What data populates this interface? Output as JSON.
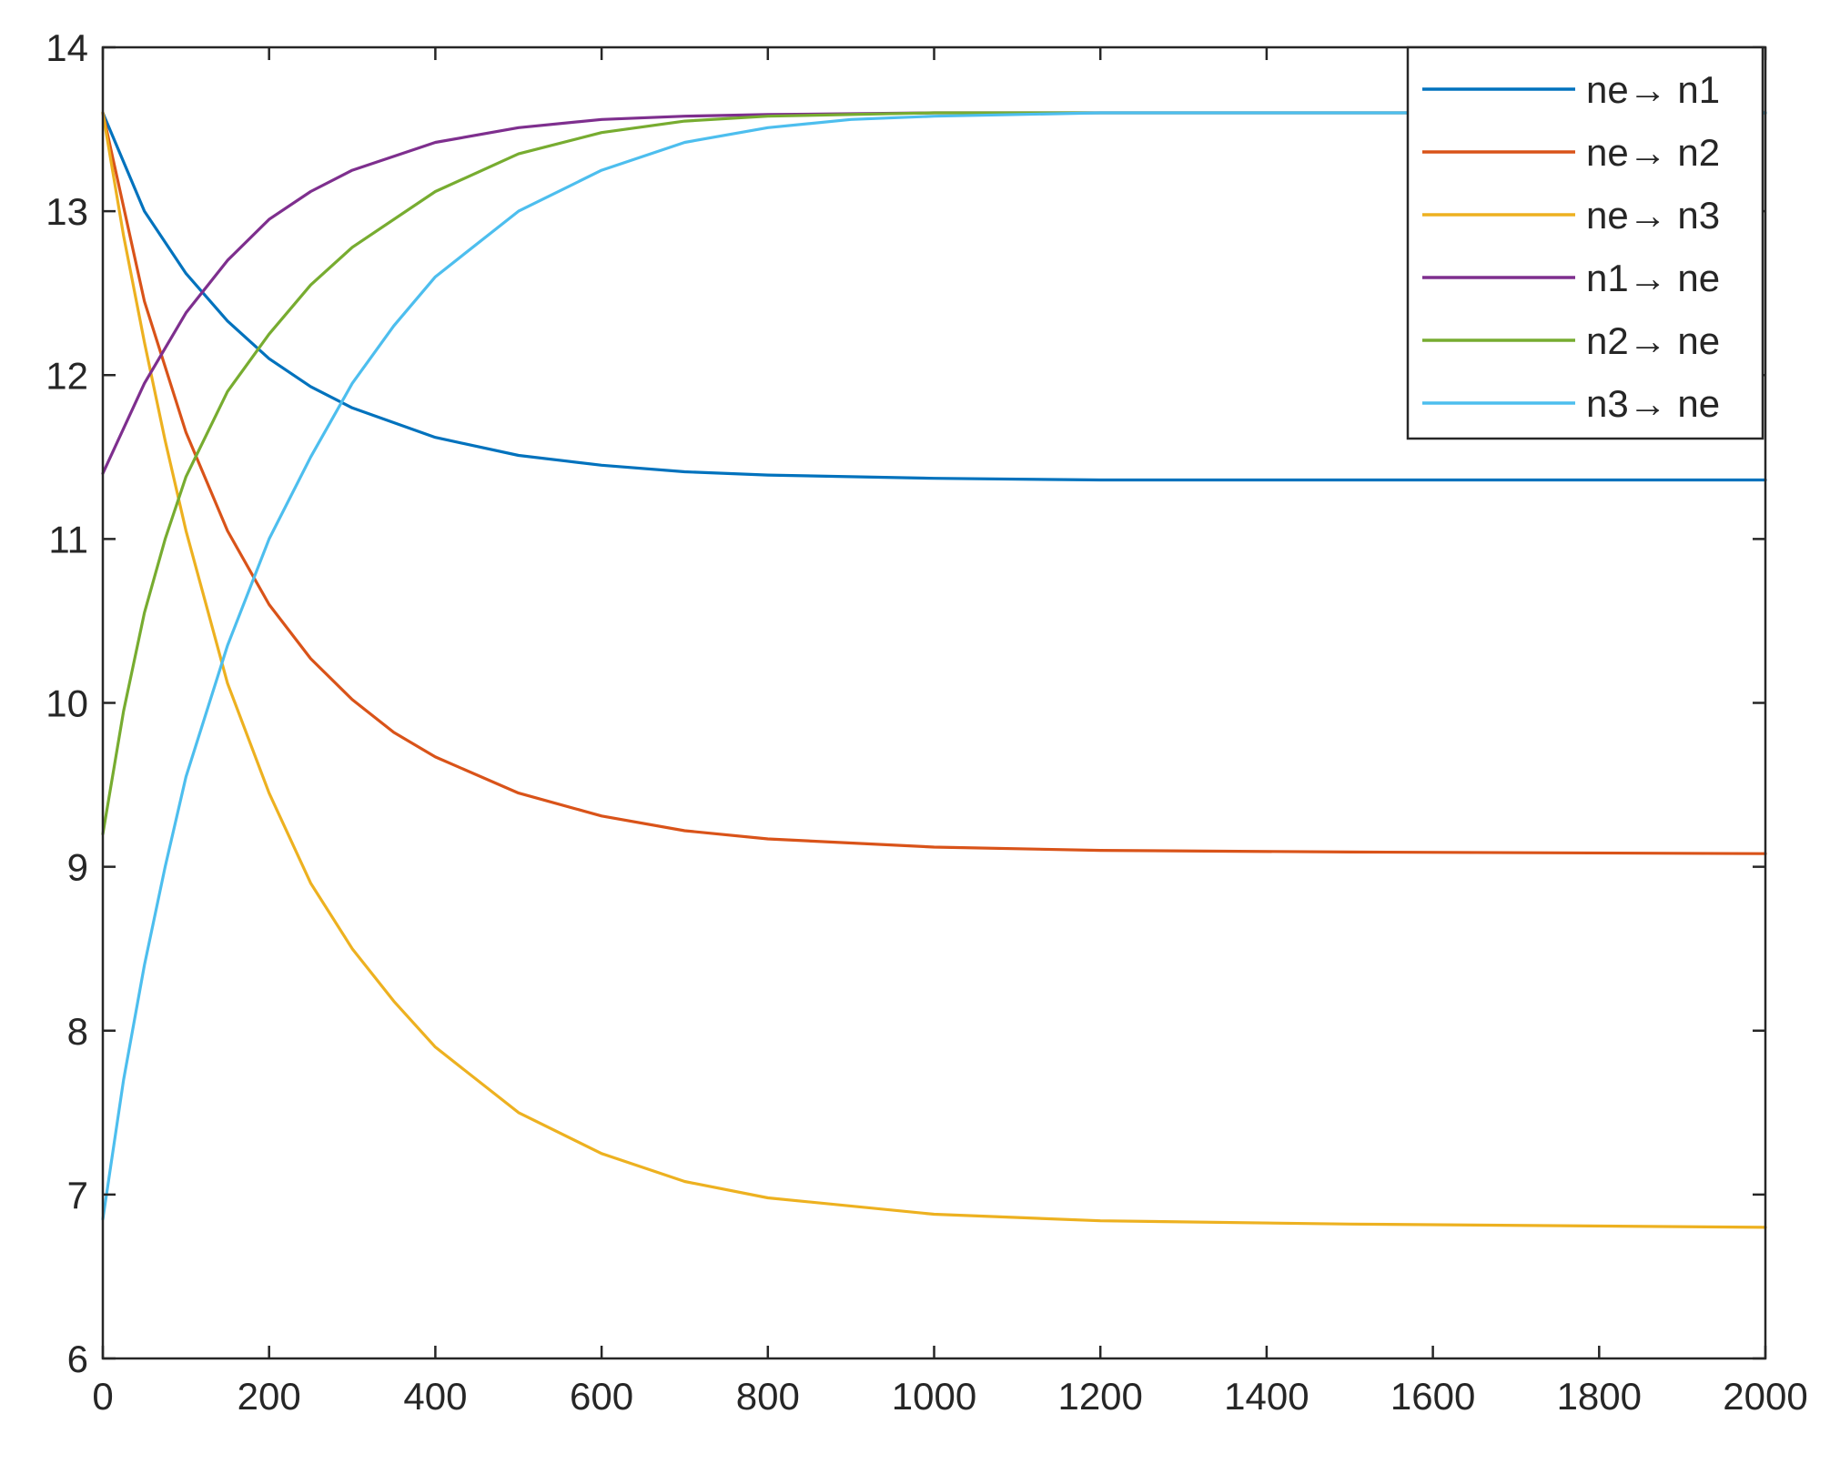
{
  "chart_data": {
    "type": "line",
    "title": "",
    "xlabel": "",
    "ylabel": "",
    "xlim": [
      0,
      2000
    ],
    "ylim": [
      6,
      14
    ],
    "xticks": [
      0,
      200,
      400,
      600,
      800,
      1000,
      1200,
      1400,
      1600,
      1800,
      2000
    ],
    "yticks": [
      6,
      7,
      8,
      9,
      10,
      11,
      12,
      13,
      14
    ],
    "xtick_labels": [
      "0",
      "200",
      "400",
      "600",
      "800",
      "1000",
      "1200",
      "1400",
      "1600",
      "1800",
      "2000"
    ],
    "ytick_labels": [
      "6",
      "7",
      "8",
      "9",
      "10",
      "11",
      "12",
      "13",
      "14"
    ],
    "grid": false,
    "legend_position": "top-right",
    "series": [
      {
        "name": "ne→ n1",
        "color": "#0072BD",
        "x": [
          0,
          50,
          100,
          150,
          200,
          250,
          300,
          400,
          500,
          600,
          700,
          800,
          1000,
          1200,
          1500,
          2000
        ],
        "y": [
          13.6,
          13.0,
          12.62,
          12.33,
          12.1,
          11.93,
          11.8,
          11.62,
          11.51,
          11.45,
          11.41,
          11.39,
          11.37,
          11.36,
          11.36,
          11.36
        ]
      },
      {
        "name": "ne→ n2",
        "color": "#D95319",
        "x": [
          0,
          50,
          100,
          150,
          200,
          250,
          300,
          350,
          400,
          500,
          600,
          700,
          800,
          1000,
          1200,
          1500,
          2000
        ],
        "y": [
          13.6,
          12.45,
          11.65,
          11.05,
          10.6,
          10.27,
          10.02,
          9.82,
          9.67,
          9.45,
          9.31,
          9.22,
          9.17,
          9.12,
          9.1,
          9.09,
          9.08
        ]
      },
      {
        "name": "ne→ n3",
        "color": "#EDB120",
        "x": [
          0,
          25,
          50,
          75,
          100,
          150,
          200,
          250,
          300,
          350,
          400,
          500,
          600,
          700,
          800,
          1000,
          1200,
          1500,
          2000
        ],
        "y": [
          13.6,
          12.85,
          12.2,
          11.6,
          11.05,
          10.12,
          9.45,
          8.9,
          8.5,
          8.18,
          7.9,
          7.5,
          7.25,
          7.08,
          6.98,
          6.88,
          6.84,
          6.82,
          6.8
        ]
      },
      {
        "name": "n1→ ne",
        "color": "#7E2F8E",
        "x": [
          0,
          50,
          100,
          150,
          200,
          250,
          300,
          400,
          500,
          600,
          700,
          800,
          1000,
          1200,
          2000
        ],
        "y": [
          11.4,
          11.95,
          12.38,
          12.7,
          12.95,
          13.12,
          13.25,
          13.42,
          13.51,
          13.56,
          13.58,
          13.59,
          13.6,
          13.6,
          13.6
        ]
      },
      {
        "name": "n2→ ne",
        "color": "#77AC30",
        "x": [
          0,
          25,
          50,
          75,
          100,
          150,
          200,
          250,
          300,
          400,
          500,
          600,
          700,
          800,
          1000,
          1200,
          2000
        ],
        "y": [
          9.2,
          9.95,
          10.55,
          11.0,
          11.38,
          11.9,
          12.25,
          12.55,
          12.78,
          13.12,
          13.35,
          13.48,
          13.55,
          13.58,
          13.6,
          13.6,
          13.6
        ]
      },
      {
        "name": "n3→ ne",
        "color": "#4DBEEE",
        "x": [
          0,
          25,
          50,
          75,
          100,
          150,
          200,
          250,
          300,
          350,
          400,
          500,
          600,
          700,
          800,
          900,
          1000,
          1200,
          1400,
          2000
        ],
        "y": [
          6.85,
          7.7,
          8.4,
          9.0,
          9.55,
          10.35,
          11.0,
          11.5,
          11.95,
          12.3,
          12.6,
          13.0,
          13.25,
          13.42,
          13.51,
          13.56,
          13.58,
          13.6,
          13.6,
          13.6
        ]
      }
    ]
  }
}
